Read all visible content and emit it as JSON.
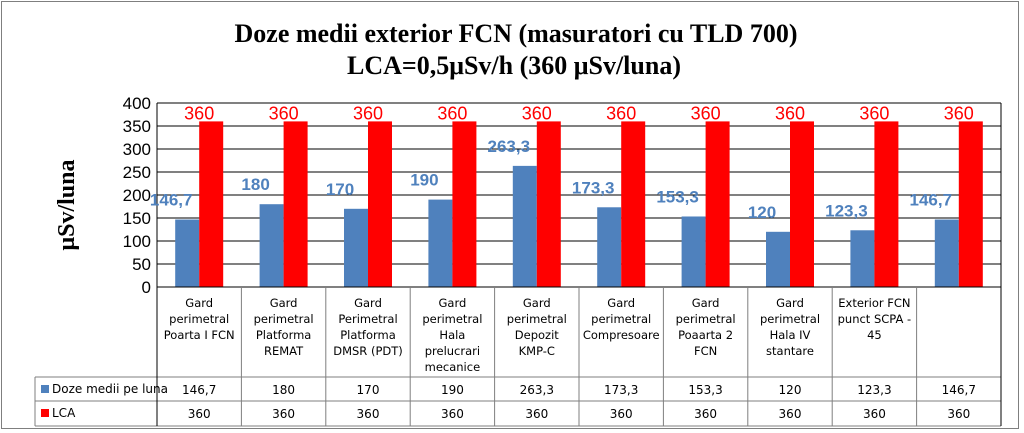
{
  "chart_data": {
    "type": "bar",
    "title_lines": [
      "Doze medii exterior FCN (masuratori cu TLD 700)",
      "LCA=0,5μSv/h (360 μSv/luna)"
    ],
    "ylabel": "μSv/luna",
    "ylim": [
      0,
      400
    ],
    "yticks": [
      0,
      50,
      100,
      150,
      200,
      250,
      300,
      350,
      400
    ],
    "grid": true,
    "categories": [
      [
        "Gard",
        "perimetral",
        "Poarta I FCN"
      ],
      [
        "Gard",
        "perimetral",
        "Platforma",
        "REMAT"
      ],
      [
        "Gard",
        "Perimetral",
        "Platforma",
        "DMSR (PDT)"
      ],
      [
        "Gard",
        "perimetral",
        "Hala",
        "prelucrari",
        "mecanice"
      ],
      [
        "Gard",
        "perimetral",
        "Depozit",
        "KMP-C"
      ],
      [
        "Gard",
        "perimetral",
        "Compresoare"
      ],
      [
        "Gard",
        "perimetral",
        "Poaarta 2",
        "FCN"
      ],
      [
        "Gard",
        "perimetral",
        "Hala IV",
        "stantare"
      ],
      [
        "Exterior FCN",
        "punct SCPA -",
        "45"
      ],
      []
    ],
    "series": [
      {
        "name": "Doze medii pe luna",
        "color": "#4f81bd",
        "values": [
          146.7,
          180,
          170,
          190,
          263.3,
          173.3,
          153.3,
          120,
          123.3,
          146.7
        ],
        "labels": [
          "146,7",
          "180",
          "170",
          "190",
          "263,3",
          "173,3",
          "153,3",
          "120",
          "123,3",
          "146,7"
        ]
      },
      {
        "name": "LCA",
        "color": "#ff0000",
        "values": [
          360,
          360,
          360,
          360,
          360,
          360,
          360,
          360,
          360,
          360
        ],
        "labels": [
          "360",
          "360",
          "360",
          "360",
          "360",
          "360",
          "360",
          "360",
          "360",
          "360"
        ]
      }
    ]
  }
}
